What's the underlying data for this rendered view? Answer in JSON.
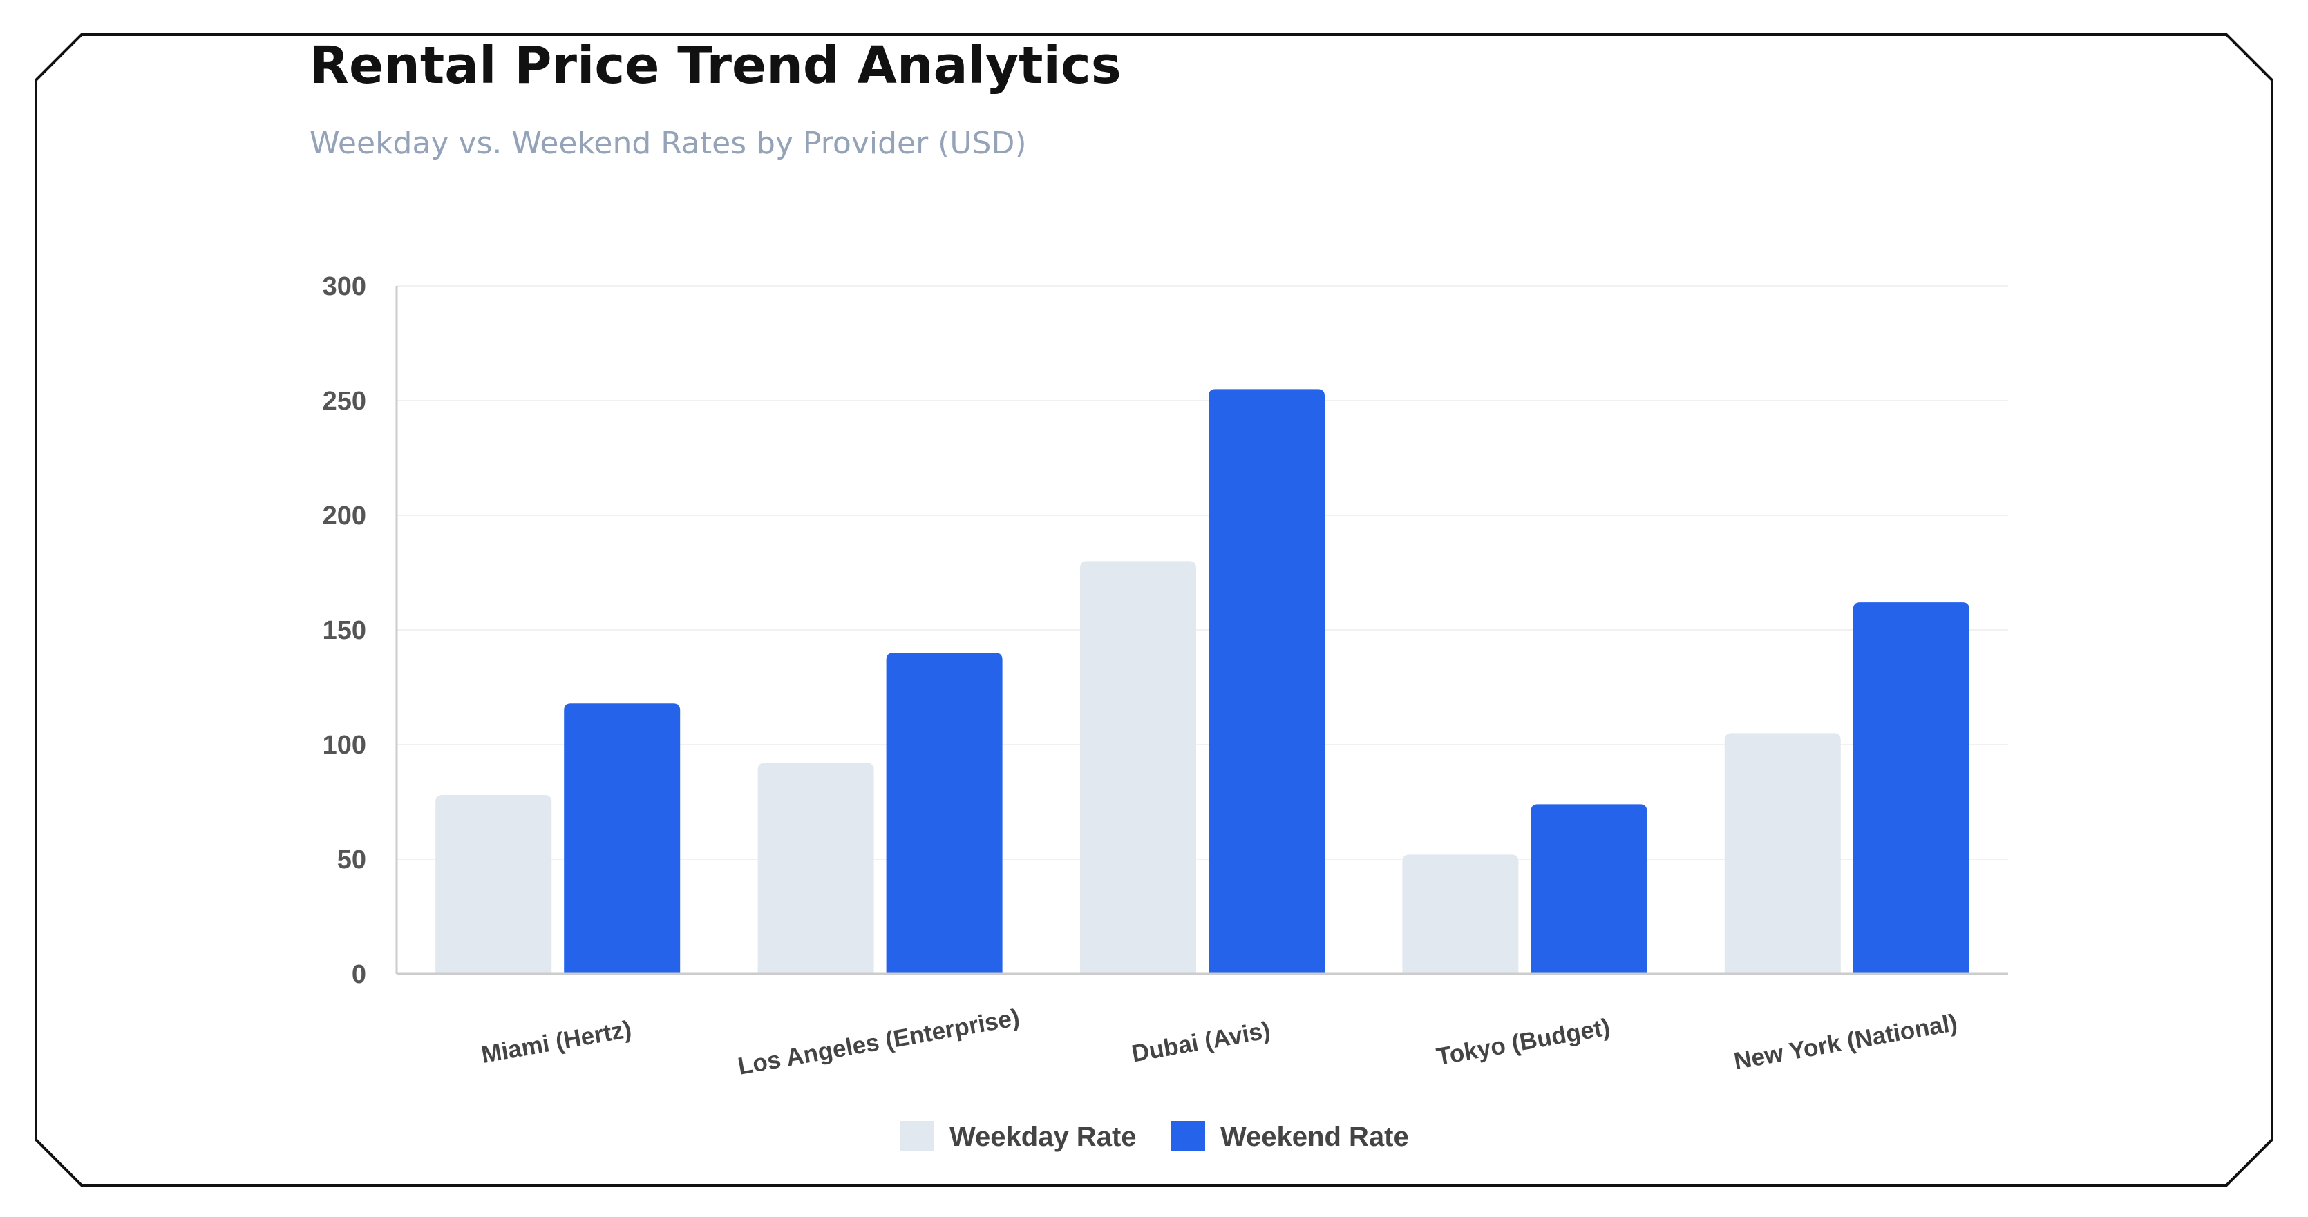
{
  "header": {
    "title": "Rental Price Trend Analytics",
    "subtitle": "Weekday vs. Weekend Rates by Provider (USD)"
  },
  "colors": {
    "weekday": "#e2e8f0",
    "weekend": "#2563eb",
    "grid": "#f1f1f1",
    "axis": "#cccccc",
    "frame": "#111111"
  },
  "chart_data": {
    "type": "bar",
    "categories": [
      "Miami (Hertz)",
      "Los Angeles (Enterprise)",
      "Dubai (Avis)",
      "Tokyo (Budget)",
      "New York (National)"
    ],
    "series": [
      {
        "name": "Weekday Rate",
        "values": [
          78,
          92,
          180,
          52,
          105
        ]
      },
      {
        "name": "Weekend Rate",
        "values": [
          118,
          140,
          255,
          74,
          162
        ]
      }
    ],
    "yticks": [
      "0",
      "50",
      "100",
      "150",
      "200",
      "250",
      "300"
    ],
    "ylim": [
      0,
      300
    ],
    "grid": true,
    "legend": "bottom-center",
    "xlabel": "",
    "ylabel": ""
  }
}
